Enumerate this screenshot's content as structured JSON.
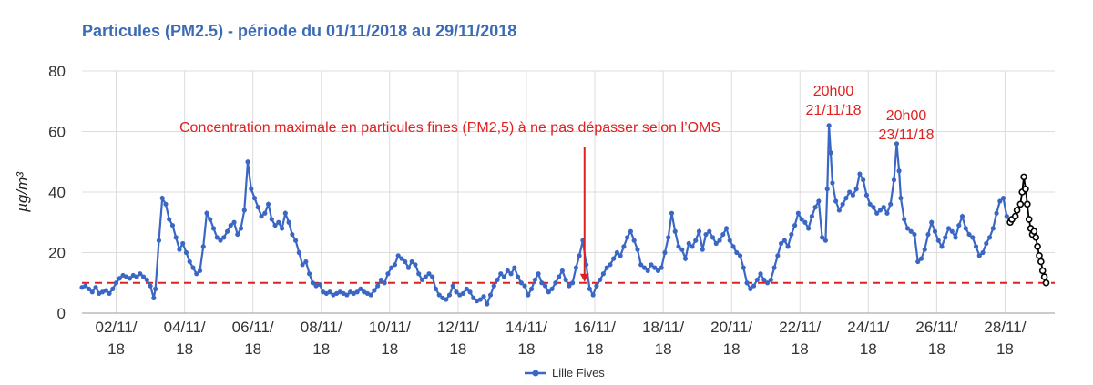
{
  "chart_data": {
    "type": "line",
    "title": "Particules (PM2.5) - période du 01/11/2018 au 29/11/2018",
    "ylabel": "µg/m³",
    "xlabel": "",
    "ylim": [
      0,
      80
    ],
    "yticks": [
      0,
      20,
      40,
      60,
      80
    ],
    "xlim": [
      1,
      28.6
    ],
    "x_unit": "day of November 2018 (1 = 01/11/18 00h00)",
    "xticks": [
      {
        "x": 2,
        "line1": "02/11/",
        "line2": "18"
      },
      {
        "x": 4,
        "line1": "04/11/",
        "line2": "18"
      },
      {
        "x": 6,
        "line1": "06/11/",
        "line2": "18"
      },
      {
        "x": 8,
        "line1": "08/11/",
        "line2": "18"
      },
      {
        "x": 10,
        "line1": "10/11/",
        "line2": "18"
      },
      {
        "x": 12,
        "line1": "12/11/",
        "line2": "18"
      },
      {
        "x": 14,
        "line1": "14/11/",
        "line2": "18"
      },
      {
        "x": 16,
        "line1": "16/11/",
        "line2": "18"
      },
      {
        "x": 18,
        "line1": "18/11/",
        "line2": "18"
      },
      {
        "x": 20,
        "line1": "20/11/",
        "line2": "18"
      },
      {
        "x": 22,
        "line1": "22/11/",
        "line2": "18"
      },
      {
        "x": 24,
        "line1": "24/11/",
        "line2": "18"
      },
      {
        "x": 26,
        "line1": "26/11/",
        "line2": "18"
      },
      {
        "x": 28,
        "line1": "28/11/",
        "line2": "18"
      }
    ],
    "grid": true,
    "legend": {
      "position": "bottom-center"
    },
    "series": [
      {
        "name": "Lille Fives",
        "color": "#3b67c4",
        "marker": "circle",
        "points": [
          [
            1.0,
            8.5
          ],
          [
            1.1,
            9
          ],
          [
            1.2,
            8
          ],
          [
            1.3,
            7
          ],
          [
            1.4,
            8.5
          ],
          [
            1.5,
            6.5
          ],
          [
            1.6,
            7
          ],
          [
            1.7,
            7.5
          ],
          [
            1.8,
            6.5
          ],
          [
            1.9,
            8
          ],
          [
            2.0,
            10
          ],
          [
            2.1,
            11.5
          ],
          [
            2.2,
            12.5
          ],
          [
            2.3,
            12
          ],
          [
            2.4,
            11.5
          ],
          [
            2.5,
            12.5
          ],
          [
            2.6,
            12
          ],
          [
            2.7,
            13
          ],
          [
            2.8,
            12
          ],
          [
            2.9,
            11
          ],
          [
            3.0,
            9
          ],
          [
            3.1,
            5
          ],
          [
            3.15,
            8
          ],
          [
            3.25,
            24
          ],
          [
            3.35,
            38
          ],
          [
            3.45,
            36
          ],
          [
            3.55,
            31
          ],
          [
            3.65,
            29
          ],
          [
            3.75,
            25
          ],
          [
            3.85,
            21
          ],
          [
            3.95,
            23
          ],
          [
            4.05,
            20
          ],
          [
            4.15,
            17
          ],
          [
            4.25,
            15
          ],
          [
            4.35,
            13
          ],
          [
            4.45,
            14
          ],
          [
            4.55,
            22
          ],
          [
            4.65,
            33
          ],
          [
            4.75,
            31
          ],
          [
            4.85,
            28
          ],
          [
            4.95,
            25
          ],
          [
            5.05,
            24
          ],
          [
            5.15,
            25
          ],
          [
            5.25,
            27
          ],
          [
            5.35,
            29
          ],
          [
            5.45,
            30
          ],
          [
            5.55,
            26
          ],
          [
            5.65,
            28
          ],
          [
            5.75,
            34
          ],
          [
            5.85,
            50
          ],
          [
            5.95,
            41
          ],
          [
            6.05,
            38
          ],
          [
            6.15,
            35
          ],
          [
            6.25,
            32
          ],
          [
            6.35,
            33
          ],
          [
            6.45,
            36
          ],
          [
            6.55,
            31
          ],
          [
            6.65,
            29
          ],
          [
            6.75,
            30
          ],
          [
            6.85,
            28
          ],
          [
            6.95,
            33
          ],
          [
            7.05,
            30
          ],
          [
            7.15,
            26
          ],
          [
            7.25,
            24
          ],
          [
            7.35,
            20
          ],
          [
            7.45,
            16
          ],
          [
            7.55,
            17
          ],
          [
            7.65,
            13
          ],
          [
            7.75,
            10
          ],
          [
            7.85,
            9
          ],
          [
            7.95,
            9.5
          ],
          [
            8.05,
            7
          ],
          [
            8.15,
            6.5
          ],
          [
            8.25,
            7
          ],
          [
            8.35,
            6
          ],
          [
            8.45,
            6.5
          ],
          [
            8.55,
            7
          ],
          [
            8.65,
            6.5
          ],
          [
            8.75,
            6
          ],
          [
            8.85,
            7
          ],
          [
            8.95,
            6.5
          ],
          [
            9.05,
            7
          ],
          [
            9.15,
            8
          ],
          [
            9.25,
            7
          ],
          [
            9.35,
            6.5
          ],
          [
            9.45,
            6
          ],
          [
            9.55,
            7.5
          ],
          [
            9.65,
            9
          ],
          [
            9.75,
            11
          ],
          [
            9.85,
            10
          ],
          [
            9.95,
            13
          ],
          [
            10.05,
            15
          ],
          [
            10.15,
            16
          ],
          [
            10.25,
            19
          ],
          [
            10.35,
            18
          ],
          [
            10.45,
            17
          ],
          [
            10.55,
            15
          ],
          [
            10.65,
            17
          ],
          [
            10.75,
            16
          ],
          [
            10.85,
            13
          ],
          [
            10.95,
            11
          ],
          [
            11.05,
            12
          ],
          [
            11.15,
            13
          ],
          [
            11.25,
            12
          ],
          [
            11.35,
            8
          ],
          [
            11.45,
            6
          ],
          [
            11.55,
            5
          ],
          [
            11.65,
            4.5
          ],
          [
            11.75,
            6
          ],
          [
            11.85,
            9
          ],
          [
            11.95,
            7
          ],
          [
            12.05,
            6
          ],
          [
            12.15,
            6.5
          ],
          [
            12.25,
            8
          ],
          [
            12.35,
            7
          ],
          [
            12.45,
            5
          ],
          [
            12.55,
            4
          ],
          [
            12.65,
            4.5
          ],
          [
            12.75,
            5.5
          ],
          [
            12.85,
            3
          ],
          [
            12.95,
            6
          ],
          [
            13.05,
            9
          ],
          [
            13.15,
            11
          ],
          [
            13.25,
            13
          ],
          [
            13.35,
            12
          ],
          [
            13.45,
            14
          ],
          [
            13.55,
            13
          ],
          [
            13.65,
            15
          ],
          [
            13.75,
            12
          ],
          [
            13.85,
            10
          ],
          [
            13.95,
            9
          ],
          [
            14.05,
            6
          ],
          [
            14.15,
            8
          ],
          [
            14.25,
            11
          ],
          [
            14.35,
            13
          ],
          [
            14.45,
            10
          ],
          [
            14.55,
            9
          ],
          [
            14.65,
            7
          ],
          [
            14.75,
            8
          ],
          [
            14.85,
            10
          ],
          [
            14.95,
            12
          ],
          [
            15.05,
            14
          ],
          [
            15.15,
            11
          ],
          [
            15.25,
            9
          ],
          [
            15.35,
            10
          ],
          [
            15.45,
            15
          ],
          [
            15.55,
            19
          ],
          [
            15.65,
            24
          ],
          [
            15.75,
            16
          ],
          [
            15.85,
            8
          ],
          [
            15.95,
            6
          ],
          [
            16.05,
            9
          ],
          [
            16.15,
            11
          ],
          [
            16.25,
            13
          ],
          [
            16.35,
            15
          ],
          [
            16.45,
            16
          ],
          [
            16.55,
            18
          ],
          [
            16.65,
            20
          ],
          [
            16.75,
            19
          ],
          [
            16.85,
            22
          ],
          [
            16.95,
            25
          ],
          [
            17.05,
            27
          ],
          [
            17.15,
            24
          ],
          [
            17.25,
            21
          ],
          [
            17.35,
            16
          ],
          [
            17.45,
            15
          ],
          [
            17.55,
            14
          ],
          [
            17.65,
            16
          ],
          [
            17.75,
            15
          ],
          [
            17.85,
            14
          ],
          [
            17.95,
            15
          ],
          [
            18.05,
            20
          ],
          [
            18.15,
            25
          ],
          [
            18.25,
            33
          ],
          [
            18.35,
            27
          ],
          [
            18.45,
            22
          ],
          [
            18.55,
            21
          ],
          [
            18.65,
            18
          ],
          [
            18.75,
            23
          ],
          [
            18.85,
            22
          ],
          [
            18.95,
            24
          ],
          [
            19.05,
            27
          ],
          [
            19.15,
            21
          ],
          [
            19.25,
            26
          ],
          [
            19.35,
            27
          ],
          [
            19.45,
            25
          ],
          [
            19.55,
            23
          ],
          [
            19.65,
            24
          ],
          [
            19.75,
            26
          ],
          [
            19.85,
            28
          ],
          [
            19.95,
            24
          ],
          [
            20.05,
            22
          ],
          [
            20.15,
            20
          ],
          [
            20.25,
            19
          ],
          [
            20.35,
            15
          ],
          [
            20.45,
            10
          ],
          [
            20.55,
            8
          ],
          [
            20.65,
            9
          ],
          [
            20.75,
            11
          ],
          [
            20.85,
            13
          ],
          [
            20.95,
            11
          ],
          [
            21.05,
            10
          ],
          [
            21.15,
            11
          ],
          [
            21.25,
            15
          ],
          [
            21.35,
            19
          ],
          [
            21.45,
            23
          ],
          [
            21.55,
            24
          ],
          [
            21.65,
            22
          ],
          [
            21.75,
            26
          ],
          [
            21.85,
            29
          ],
          [
            21.95,
            33
          ],
          [
            22.05,
            31
          ],
          [
            22.15,
            30
          ],
          [
            22.25,
            28
          ],
          [
            22.35,
            32
          ],
          [
            22.45,
            35
          ],
          [
            22.55,
            37
          ],
          [
            22.65,
            25
          ],
          [
            22.75,
            24
          ],
          [
            22.8,
            41
          ],
          [
            22.85,
            62
          ],
          [
            22.9,
            53
          ],
          [
            22.95,
            43
          ],
          [
            23.05,
            37
          ],
          [
            23.15,
            34
          ],
          [
            23.25,
            36
          ],
          [
            23.35,
            38
          ],
          [
            23.45,
            40
          ],
          [
            23.55,
            39
          ],
          [
            23.65,
            41
          ],
          [
            23.75,
            46
          ],
          [
            23.85,
            44
          ],
          [
            23.95,
            39
          ],
          [
            24.05,
            36
          ],
          [
            24.15,
            35
          ],
          [
            24.25,
            33
          ],
          [
            24.35,
            34
          ],
          [
            24.45,
            35
          ],
          [
            24.55,
            33
          ],
          [
            24.65,
            36
          ],
          [
            24.75,
            44
          ],
          [
            24.83,
            56
          ],
          [
            24.9,
            47
          ],
          [
            24.95,
            38
          ],
          [
            25.05,
            31
          ],
          [
            25.15,
            28
          ],
          [
            25.25,
            27
          ],
          [
            25.35,
            26
          ],
          [
            25.45,
            17
          ],
          [
            25.55,
            18
          ],
          [
            25.65,
            21
          ],
          [
            25.75,
            26
          ],
          [
            25.85,
            30
          ],
          [
            25.95,
            27
          ],
          [
            26.05,
            24
          ],
          [
            26.15,
            22
          ],
          [
            26.25,
            25
          ],
          [
            26.35,
            28
          ],
          [
            26.45,
            27
          ],
          [
            26.55,
            25
          ],
          [
            26.65,
            29
          ],
          [
            26.75,
            32
          ],
          [
            26.85,
            28
          ],
          [
            26.95,
            26
          ],
          [
            27.05,
            25
          ],
          [
            27.15,
            22
          ],
          [
            27.25,
            19
          ],
          [
            27.35,
            20
          ],
          [
            27.45,
            23
          ],
          [
            27.55,
            25
          ],
          [
            27.65,
            28
          ],
          [
            27.75,
            33
          ],
          [
            27.85,
            37
          ],
          [
            27.95,
            38
          ],
          [
            28.05,
            32
          ],
          [
            28.15,
            30
          ]
        ]
      },
      {
        "name": "",
        "color": "#000000",
        "marker": "open-circle",
        "points": [
          [
            28.15,
            30
          ],
          [
            28.2,
            31
          ],
          [
            28.3,
            32
          ],
          [
            28.35,
            34
          ],
          [
            28.45,
            36
          ],
          [
            28.5,
            40
          ],
          [
            28.55,
            45
          ],
          [
            28.6,
            41
          ],
          [
            28.65,
            36
          ],
          [
            28.7,
            31
          ],
          [
            28.75,
            28
          ],
          [
            28.8,
            26
          ],
          [
            28.85,
            27
          ],
          [
            28.9,
            25
          ],
          [
            28.95,
            22
          ],
          [
            29.0,
            19
          ],
          [
            29.05,
            17
          ],
          [
            29.1,
            14
          ],
          [
            29.15,
            12
          ],
          [
            29.2,
            10
          ]
        ]
      }
    ],
    "threshold": {
      "value": 10,
      "color": "#e02020",
      "style": "dashed"
    },
    "annotations": [
      {
        "text": "Concentration maximale en particules fines (PM2,5) à ne pas dépasser selon l’OMS",
        "arrow_x": 15.7,
        "arrow_y_from": 55,
        "arrow_y_to": 10
      },
      {
        "line1": "20h00",
        "line2": "21/11/18"
      },
      {
        "line1": "20h00",
        "line2": "23/11/18"
      }
    ]
  },
  "legend_label": "Lille Fives"
}
